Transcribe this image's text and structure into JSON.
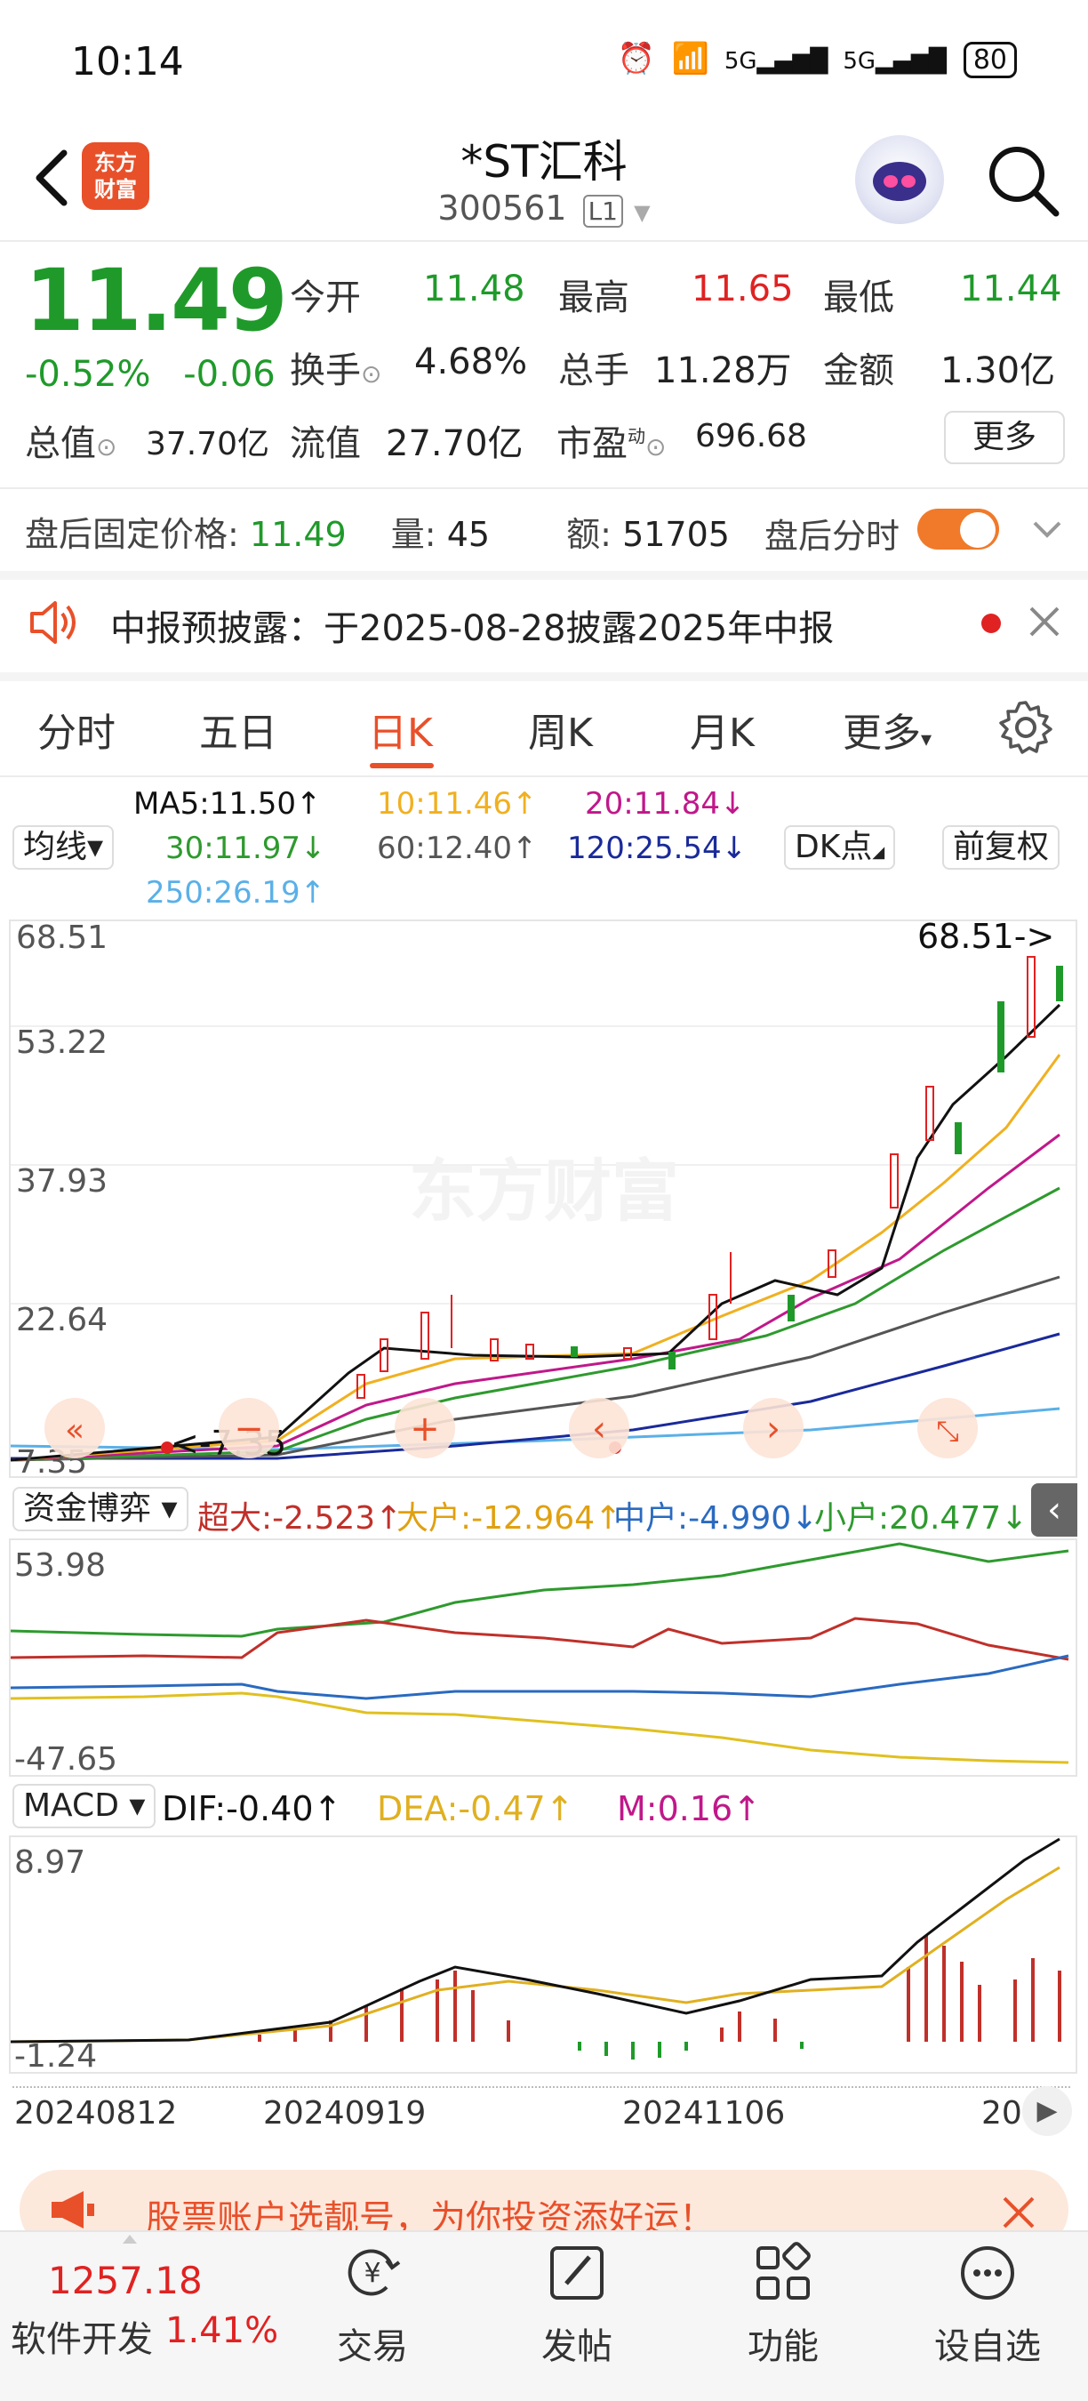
{
  "status": {
    "time": "10:14",
    "battery": "80"
  },
  "header": {
    "logo_text_1": "东方",
    "logo_text_2": "财富",
    "name": "*ST汇科",
    "code": "300561",
    "level": "L1"
  },
  "quote": {
    "price": "11.49",
    "change_pct": "-0.52%",
    "change_abs": "-0.06",
    "open_label": "今开",
    "open": "11.48",
    "high_label": "最高",
    "high": "11.65",
    "low_label": "最低",
    "low": "11.44",
    "turnover_label": "换手",
    "turnover": "4.68%",
    "volume_label": "总手",
    "volume": "11.28万",
    "amount_label": "金额",
    "amount": "1.30亿",
    "mcap_label": "总值",
    "mcap": "37.70亿",
    "float_label": "流值",
    "float": "27.70亿",
    "pe_label": "市盈",
    "pe_sup": "动",
    "pe": "696.68",
    "more": "更多"
  },
  "after_hours": {
    "label": "盘后固定价格:",
    "price": "11.49",
    "vol_label": "量:",
    "vol": "45",
    "amt_label": "额:",
    "amt": "51705",
    "toggle_label": "盘后分时"
  },
  "announcement": {
    "text": "中报预披露：于2025-08-28披露2025年中报"
  },
  "tabs": [
    "分时",
    "五日",
    "日K",
    "周K",
    "月K",
    "更多"
  ],
  "ma": {
    "ma5": "MA5:11.50↑",
    "ma10": "10:11.46↑",
    "ma20": "20:11.84↓",
    "ma30": "30:11.97↓",
    "ma60": "60:12.40↑",
    "ma120": "120:25.54↓",
    "ma250": "250:26.19↑",
    "selector": "均线▾",
    "dk": "DK点",
    "adjust": "前复权"
  },
  "kchart": {
    "y_labels": [
      "68.51",
      "53.22",
      "37.93",
      "22.64",
      "7.35"
    ],
    "max_label": "68.51->",
    "min_label": "<-7.35",
    "watermark": "东方财富"
  },
  "fund": {
    "selector": "资金博弈 ▾",
    "super": "超大:-2.523↑",
    "big": "大户:-12.964↑",
    "mid": "中户:-4.990↓",
    "small": "小户:20.477↓",
    "y_top": "53.98",
    "y_bottom": "-47.65"
  },
  "macd": {
    "selector": "MACD ▾",
    "dif": "DIF:-0.40↑",
    "dea": "DEA:-0.47↑",
    "m": "M:0.16↑",
    "y_top": "8.97",
    "y_bottom": "-1.24"
  },
  "dates": [
    "20240812",
    "20240919",
    "20241106",
    "20"
  ],
  "promo": {
    "text": "股票账户选靓号，为你投资添好运！"
  },
  "bottom_nav": {
    "index_value": "1257.18",
    "index_name": "软件开发",
    "index_pct": "1.41%",
    "items": [
      "交易",
      "发帖",
      "功能",
      "设自选"
    ]
  },
  "colors": {
    "up": "#e02222",
    "down": "#1f9a2a",
    "accent": "#e8502a",
    "ma5": "#111111",
    "ma10": "#f0b020",
    "ma20": "#c0188a",
    "ma30": "#2e9a2e",
    "ma60": "#555555",
    "ma120": "#1a2a9a",
    "ma250": "#5ab0e8"
  }
}
